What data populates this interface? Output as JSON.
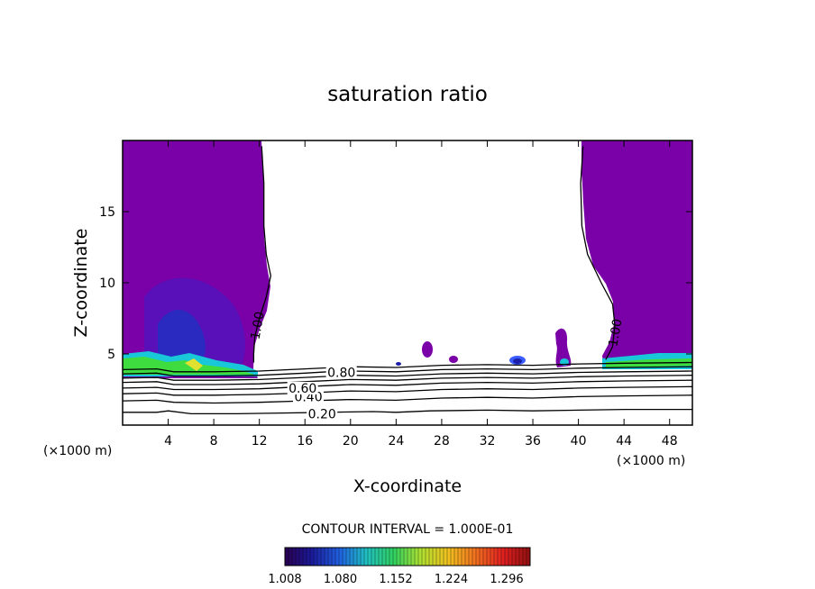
{
  "chart_data": {
    "type": "heatmap",
    "title": "saturation ratio",
    "xlabel": "X-coordinate",
    "ylabel": "Z-coordinate",
    "x_unit": "(×1000 m)",
    "z_unit": "(×1000 m)",
    "xlim": [
      0,
      50
    ],
    "ylim": [
      0,
      20
    ],
    "x_ticks": [
      4,
      8,
      12,
      16,
      20,
      24,
      28,
      32,
      36,
      40,
      44,
      48
    ],
    "x_tick_labels": [
      "4",
      "8",
      "12",
      "16",
      "20",
      "24",
      "28",
      "32",
      "36",
      "40",
      "44",
      "48"
    ],
    "y_ticks": [
      5,
      10,
      15
    ],
    "y_tick_labels": [
      "5",
      "10",
      "15"
    ],
    "contour_interval_label": "CONTOUR INTERVAL = 1.000E-01",
    "contour_lines": [
      {
        "level_label": "0.20",
        "label_x": 17.5,
        "label_y": 0.8,
        "points": [
          [
            0,
            0.9
          ],
          [
            3,
            0.9
          ],
          [
            4,
            1.0
          ],
          [
            6,
            0.8
          ],
          [
            10,
            0.8
          ],
          [
            14,
            0.85
          ],
          [
            18,
            0.9
          ],
          [
            22,
            0.95
          ],
          [
            24,
            0.9
          ],
          [
            27,
            1.0
          ],
          [
            32,
            1.05
          ],
          [
            36,
            1.0
          ],
          [
            40,
            1.05
          ],
          [
            44,
            1.1
          ],
          [
            50,
            1.1
          ]
        ]
      },
      {
        "level_label": "",
        "points": [
          [
            0,
            1.7
          ],
          [
            3,
            1.75
          ],
          [
            4.5,
            1.6
          ],
          [
            8,
            1.55
          ],
          [
            12,
            1.6
          ],
          [
            16,
            1.7
          ],
          [
            20,
            1.8
          ],
          [
            24,
            1.75
          ],
          [
            28,
            1.9
          ],
          [
            32,
            1.95
          ],
          [
            36,
            1.9
          ],
          [
            40,
            2.0
          ],
          [
            44,
            2.05
          ],
          [
            50,
            2.1
          ]
        ]
      },
      {
        "level_label": "0.40",
        "label_x": 16.3,
        "label_y": 2.0,
        "points": [
          [
            0,
            2.2
          ],
          [
            3,
            2.25
          ],
          [
            4.5,
            2.1
          ],
          [
            8,
            2.1
          ],
          [
            12,
            2.15
          ],
          [
            16,
            2.25
          ],
          [
            20,
            2.4
          ],
          [
            24,
            2.35
          ],
          [
            28,
            2.5
          ],
          [
            32,
            2.55
          ],
          [
            36,
            2.5
          ],
          [
            40,
            2.6
          ],
          [
            44,
            2.65
          ],
          [
            50,
            2.7
          ]
        ]
      },
      {
        "level_label": "",
        "points": [
          [
            0,
            2.6
          ],
          [
            3,
            2.65
          ],
          [
            4.5,
            2.5
          ],
          [
            8,
            2.5
          ],
          [
            12,
            2.55
          ],
          [
            16,
            2.7
          ],
          [
            20,
            2.85
          ],
          [
            24,
            2.8
          ],
          [
            28,
            2.95
          ],
          [
            32,
            3.0
          ],
          [
            36,
            2.95
          ],
          [
            40,
            3.05
          ],
          [
            44,
            3.1
          ],
          [
            50,
            3.15
          ]
        ]
      },
      {
        "level_label": "0.60",
        "label_x": 15.8,
        "label_y": 2.6,
        "points": [
          [
            0,
            3.0
          ],
          [
            3,
            3.05
          ],
          [
            4.5,
            2.85
          ],
          [
            8,
            2.85
          ],
          [
            12,
            2.9
          ],
          [
            16,
            3.05
          ],
          [
            20,
            3.2
          ],
          [
            24,
            3.15
          ],
          [
            28,
            3.3
          ],
          [
            32,
            3.35
          ],
          [
            36,
            3.3
          ],
          [
            40,
            3.4
          ],
          [
            44,
            3.45
          ],
          [
            50,
            3.5
          ]
        ]
      },
      {
        "level_label": "",
        "points": [
          [
            0,
            3.3
          ],
          [
            3,
            3.35
          ],
          [
            4.5,
            3.15
          ],
          [
            8,
            3.15
          ],
          [
            12,
            3.2
          ],
          [
            16,
            3.35
          ],
          [
            20,
            3.5
          ],
          [
            24,
            3.45
          ],
          [
            28,
            3.6
          ],
          [
            32,
            3.65
          ],
          [
            36,
            3.6
          ],
          [
            40,
            3.7
          ],
          [
            44,
            3.75
          ],
          [
            50,
            3.8
          ]
        ]
      },
      {
        "level_label": "0.80",
        "label_x": 19.2,
        "label_y": 3.7,
        "points": [
          [
            0,
            3.6
          ],
          [
            3,
            3.65
          ],
          [
            4.5,
            3.45
          ],
          [
            8,
            3.45
          ],
          [
            12,
            3.5
          ],
          [
            16,
            3.65
          ],
          [
            18,
            3.75
          ],
          [
            20,
            3.8
          ],
          [
            24,
            3.75
          ],
          [
            28,
            3.9
          ],
          [
            32,
            3.95
          ],
          [
            36,
            3.9
          ],
          [
            40,
            4.0
          ],
          [
            44,
            4.05
          ],
          [
            50,
            4.1
          ]
        ]
      },
      {
        "level_label": "",
        "points": [
          [
            0,
            3.9
          ],
          [
            3,
            3.95
          ],
          [
            4.5,
            3.75
          ],
          [
            8,
            3.75
          ],
          [
            12,
            3.8
          ],
          [
            16,
            3.95
          ],
          [
            20,
            4.1
          ],
          [
            24,
            4.05
          ],
          [
            28,
            4.2
          ],
          [
            32,
            4.25
          ],
          [
            36,
            4.2
          ],
          [
            40,
            4.3
          ],
          [
            44,
            4.35
          ],
          [
            50,
            4.4
          ]
        ]
      },
      {
        "level_label": "1.00",
        "label_x": 11.8,
        "label_y": 7.0,
        "points": [
          [
            12.2,
            19.6
          ],
          [
            12.4,
            17
          ],
          [
            12.4,
            14
          ],
          [
            12.6,
            12
          ],
          [
            13.0,
            10.5
          ],
          [
            12.6,
            9.0
          ],
          [
            12.0,
            7.5
          ],
          [
            11.6,
            6.2
          ],
          [
            11.5,
            5.0
          ],
          [
            11.5,
            4.4
          ]
        ]
      },
      {
        "level_label": "1.00",
        "label_x": 43.2,
        "label_y": 6.5,
        "points": [
          [
            40.4,
            19.6
          ],
          [
            40.2,
            17
          ],
          [
            40.3,
            14
          ],
          [
            40.8,
            12
          ],
          [
            42.0,
            10
          ],
          [
            43.0,
            8.5
          ],
          [
            43.2,
            7.0
          ],
          [
            43.0,
            5.5
          ],
          [
            42.4,
            4.6
          ]
        ]
      }
    ],
    "colorbar": {
      "ticks": [
        "1.008",
        "1.080",
        "1.152",
        "1.224",
        "1.296"
      ],
      "colors": [
        "#2a0050",
        "#1a1a9a",
        "#2060e0",
        "#20c0c0",
        "#30d060",
        "#b0e030",
        "#f0c020",
        "#f07020",
        "#e02020",
        "#901010"
      ]
    },
    "colors": {
      "supersaturated_fill": "#7a00a8",
      "deep_blue": "#1b1fa8",
      "mid_blue": "#3b5cff",
      "cyan": "#19c8d8",
      "green": "#3fdc3f",
      "yellow": "#e0e030",
      "line": "#000000"
    }
  }
}
